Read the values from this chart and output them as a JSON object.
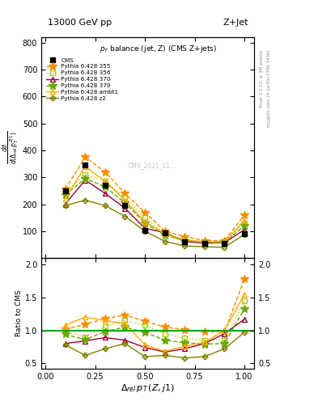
{
  "title_top": "13000 GeV pp",
  "title_right": "Z+Jet",
  "plot_title": "$p_T$ balance (jet, Z) (CMS Z+jets)",
  "xlabel": "$\\Delta_{rel}\\,p_T\\,(Z,j1)$",
  "ylabel_main": "$\\frac{d\\sigma}{d(\\Delta_{rel}\\,p_T^{Zj1})}$",
  "ylabel_ratio": "Ratio to CMS",
  "right_label_top": "Rivet 3.1.10, ≥ 3M events",
  "right_label_bottom": "mcplots.cern.ch [arXiv:1306.3436]",
  "watermark": "CMS_2021_11...",
  "ylim_main": [
    0,
    820
  ],
  "ylim_ratio": [
    0.42,
    2.1
  ],
  "yticks_main": [
    100,
    200,
    300,
    400,
    500,
    600,
    700,
    800
  ],
  "yticks_ratio": [
    0.5,
    1.0,
    1.5,
    2.0
  ],
  "xticks": [
    0,
    0.25,
    0.5,
    0.75,
    1.0
  ],
  "x_data": [
    0.1,
    0.2,
    0.3,
    0.4,
    0.5,
    0.6,
    0.7,
    0.8,
    0.9,
    1.0
  ],
  "cms_data": [
    250,
    345,
    270,
    195,
    102,
    95,
    62,
    55,
    55,
    90
  ],
  "series": [
    {
      "label": "Pythia 6.428 355",
      "color": "#ff8c00",
      "linestyle": "--",
      "marker": "*",
      "markersize": 7,
      "y_main": [
        255,
        375,
        320,
        240,
        170,
        100,
        80,
        65,
        65,
        160
      ],
      "y_ratio": [
        1.02,
        1.09,
        1.18,
        1.23,
        1.14,
        1.05,
        1.01,
        0.98,
        0.98,
        1.78
      ]
    },
    {
      "label": "Pythia 6.428 356",
      "color": "#aacc00",
      "linestyle": ":",
      "marker": "s",
      "markersize": 4,
      "y_main": [
        245,
        310,
        285,
        225,
        150,
        90,
        70,
        60,
        58,
        130
      ],
      "y_ratio": [
        0.98,
        0.9,
        1.06,
        1.15,
        1.08,
        0.95,
        0.88,
        0.85,
        0.85,
        1.45
      ]
    },
    {
      "label": "Pythia 6.428 370",
      "color": "#990033",
      "linestyle": "-",
      "marker": "^",
      "markersize": 4,
      "y_main": [
        200,
        290,
        240,
        185,
        110,
        95,
        62,
        55,
        58,
        105
      ],
      "y_ratio": [
        0.8,
        0.84,
        0.89,
        0.85,
        0.74,
        0.67,
        0.72,
        0.8,
        0.95,
        1.17
      ]
    },
    {
      "label": "Pythia 6.428 379",
      "color": "#66aa00",
      "linestyle": "--",
      "marker": "*",
      "markersize": 7,
      "y_main": [
        235,
        295,
        265,
        205,
        130,
        85,
        65,
        58,
        58,
        120
      ],
      "y_ratio": [
        0.94,
        0.86,
        0.98,
        1.05,
        0.97,
        0.85,
        0.81,
        0.79,
        0.8,
        1.33
      ]
    },
    {
      "label": "Pythia 6.428 ambt1",
      "color": "#ffaa00",
      "linestyle": "-",
      "marker": "^",
      "markersize": 5,
      "y_main": [
        220,
        340,
        285,
        215,
        135,
        90,
        68,
        60,
        62,
        140
      ],
      "y_ratio": [
        1.08,
        1.2,
        1.15,
        1.1,
        0.78,
        0.68,
        0.76,
        0.82,
        1.0,
        1.55
      ]
    },
    {
      "label": "Pythia 6.428 z2",
      "color": "#808000",
      "linestyle": "-",
      "marker": "P",
      "markersize": 4,
      "y_main": [
        195,
        215,
        195,
        155,
        100,
        62,
        45,
        42,
        40,
        88
      ],
      "y_ratio": [
        0.78,
        0.62,
        0.72,
        0.8,
        0.6,
        0.62,
        0.58,
        0.6,
        0.72,
        0.97
      ]
    }
  ]
}
